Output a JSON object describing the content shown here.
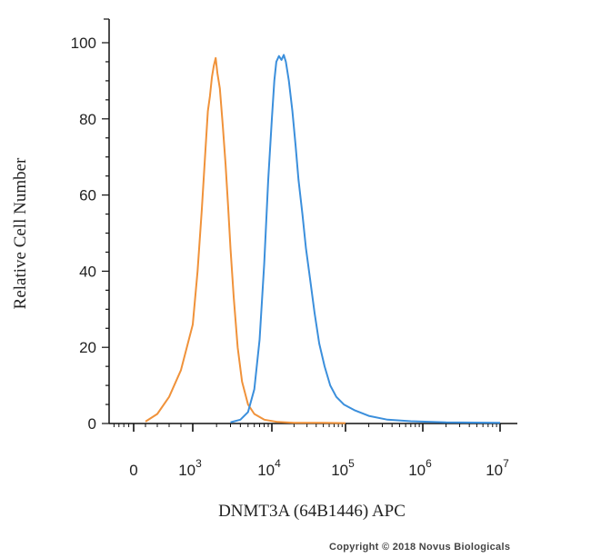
{
  "chart_data": {
    "type": "line",
    "title": "",
    "xlabel": "DNMT3A (64B1446) APC",
    "ylabel": "Relative Cell Number",
    "xscale": "biexponential",
    "xlim": [
      -1000,
      10000000
    ],
    "ylim": [
      0,
      100
    ],
    "x_ticks": [
      {
        "base": "0",
        "exp": "",
        "value": 0
      },
      {
        "base": "10",
        "exp": "3",
        "value": 1000
      },
      {
        "base": "10",
        "exp": "4",
        "value": 10000
      },
      {
        "base": "10",
        "exp": "5",
        "value": 100000
      },
      {
        "base": "10",
        "exp": "6",
        "value": 1000000
      },
      {
        "base": "10",
        "exp": "7",
        "value": 10000000
      }
    ],
    "y_ticks": [
      "0",
      "20",
      "40",
      "60",
      "80",
      "100"
    ],
    "grid": false,
    "legend": "none",
    "series": [
      {
        "color": "#f0923a",
        "points": [
          [
            200,
            0.5
          ],
          [
            400,
            2.5
          ],
          [
            600,
            7
          ],
          [
            800,
            14
          ],
          [
            1000,
            26
          ],
          [
            1150,
            40
          ],
          [
            1300,
            56
          ],
          [
            1450,
            72
          ],
          [
            1550,
            82
          ],
          [
            1650,
            86
          ],
          [
            1750,
            91
          ],
          [
            1850,
            94
          ],
          [
            1950,
            96
          ],
          [
            2050,
            92
          ],
          [
            2200,
            88
          ],
          [
            2400,
            78
          ],
          [
            2600,
            68
          ],
          [
            2800,
            57
          ],
          [
            3000,
            46
          ],
          [
            3300,
            33
          ],
          [
            3700,
            20
          ],
          [
            4200,
            11
          ],
          [
            5000,
            5
          ],
          [
            6000,
            2.5
          ],
          [
            8000,
            1
          ],
          [
            12000,
            0.4
          ],
          [
            20000,
            0.2
          ],
          [
            50000,
            0.2
          ],
          [
            100000,
            0.1
          ]
        ]
      },
      {
        "color": "#3b8fdc",
        "points": [
          [
            3000,
            0.3
          ],
          [
            4000,
            1
          ],
          [
            5000,
            3
          ],
          [
            6000,
            9
          ],
          [
            7000,
            22
          ],
          [
            8000,
            42
          ],
          [
            9000,
            64
          ],
          [
            10000,
            80
          ],
          [
            10800,
            90
          ],
          [
            11500,
            95
          ],
          [
            12500,
            96.5
          ],
          [
            13500,
            95.5
          ],
          [
            14500,
            96.8
          ],
          [
            15500,
            95
          ],
          [
            17000,
            90
          ],
          [
            19000,
            82
          ],
          [
            21000,
            73
          ],
          [
            23000,
            64
          ],
          [
            26000,
            55
          ],
          [
            29000,
            46
          ],
          [
            33000,
            38
          ],
          [
            38000,
            29
          ],
          [
            44000,
            21
          ],
          [
            52000,
            15
          ],
          [
            62000,
            10
          ],
          [
            75000,
            7
          ],
          [
            95000,
            5
          ],
          [
            130000,
            3.5
          ],
          [
            200000,
            2
          ],
          [
            350000,
            1
          ],
          [
            700000,
            0.6
          ],
          [
            2000000,
            0.3
          ],
          [
            10000000,
            0.2
          ]
        ]
      }
    ]
  },
  "footer": {
    "copyright": "Copyright © 2018 Novus Biologicals"
  }
}
